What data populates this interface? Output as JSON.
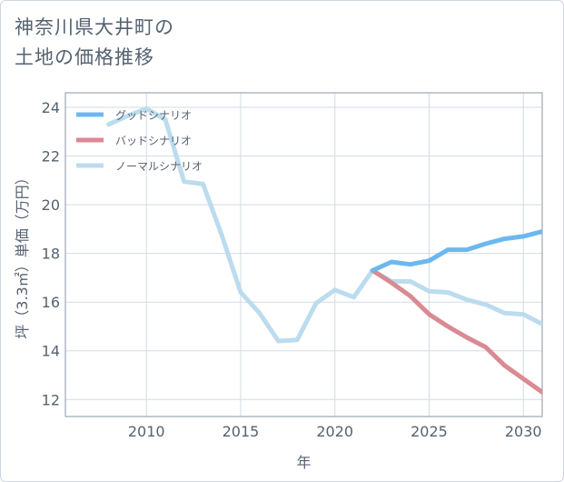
{
  "title_line1": "神奈川県大井町の",
  "title_line2": "土地の価格推移",
  "chart_data": {
    "type": "line",
    "title": "神奈川県大井町の土地の価格推移",
    "xlabel": "年",
    "ylabel": "坪（3.3㎡）単価（万円）",
    "xlim": [
      2005.7,
      2031
    ],
    "ylim": [
      11.3,
      24.6
    ],
    "xticks": [
      2010,
      2015,
      2020,
      2025,
      2030
    ],
    "yticks": [
      12,
      14,
      16,
      18,
      20,
      22,
      24
    ],
    "xtick_labels": [
      "2010",
      "2015",
      "2020",
      "2025",
      "2030"
    ],
    "ytick_labels": [
      "12",
      "14",
      "16",
      "18",
      "20",
      "22",
      "24"
    ],
    "grid": true,
    "legend_position": "top-left",
    "series": [
      {
        "name": "グッドシナリオ",
        "color": "#6cb8ee",
        "x": [
          2022,
          2023,
          2024,
          2025,
          2026,
          2027,
          2028,
          2029,
          2030,
          2031
        ],
        "y": [
          17.3,
          17.65,
          17.55,
          17.7,
          18.15,
          18.15,
          18.4,
          18.6,
          18.7,
          18.9
        ]
      },
      {
        "name": "バッドシナリオ",
        "color": "#d98a93",
        "x": [
          2022,
          2023,
          2024,
          2025,
          2026,
          2027,
          2028,
          2029,
          2030,
          2031
        ],
        "y": [
          17.3,
          16.8,
          16.25,
          15.5,
          15.0,
          14.55,
          14.15,
          13.4,
          12.85,
          12.3
        ]
      },
      {
        "name": "ノーマルシナリオ",
        "color": "#bcdcee",
        "x": [
          2008,
          2009,
          2010,
          2011,
          2012,
          2013,
          2014,
          2015,
          2016,
          2017,
          2018,
          2019,
          2020,
          2021,
          2022,
          2023,
          2024,
          2025,
          2026,
          2027,
          2028,
          2029,
          2030,
          2031
        ],
        "y": [
          23.3,
          23.65,
          23.95,
          23.5,
          20.95,
          20.85,
          18.75,
          16.4,
          15.55,
          14.4,
          14.45,
          15.95,
          16.5,
          16.2,
          17.3,
          16.85,
          16.85,
          16.45,
          16.4,
          16.1,
          15.9,
          15.55,
          15.5,
          15.1
        ]
      }
    ]
  }
}
